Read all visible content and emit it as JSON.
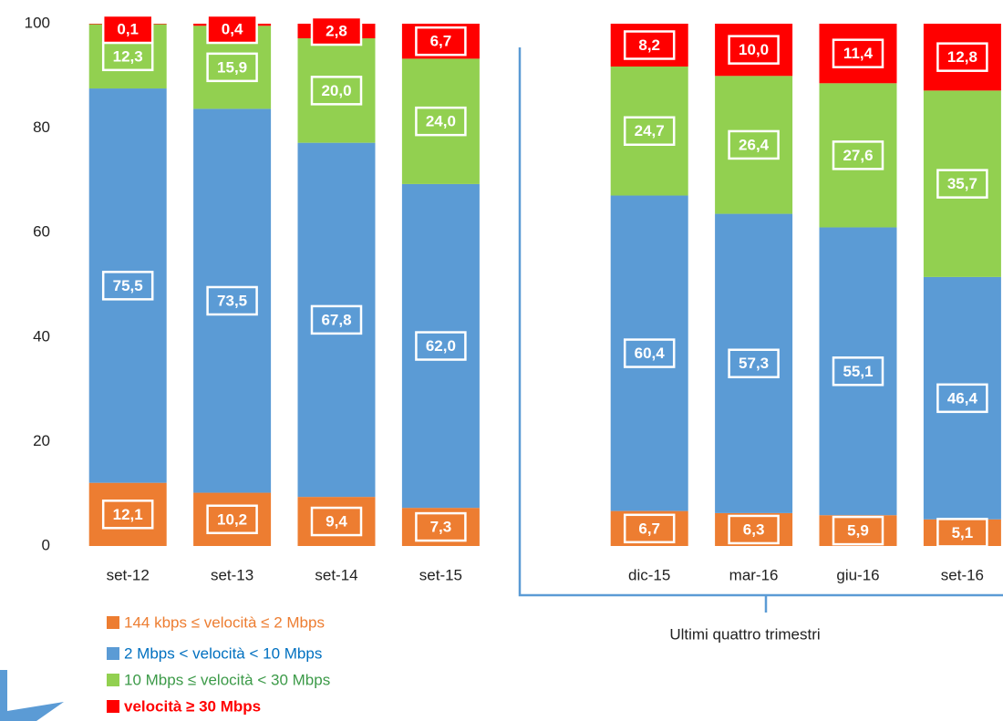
{
  "chart_data": {
    "type": "bar",
    "stacked": true,
    "categories": [
      "set-12",
      "set-13",
      "set-14",
      "set-15",
      null,
      "dic-15",
      "mar-16",
      "giu-16",
      "set-16"
    ],
    "series": [
      {
        "name": "144 kbps  ≤ velocità ≤  2 Mbps",
        "color": "#ed7d31",
        "label_color": "#ed7d31",
        "values": [
          12.1,
          10.2,
          9.4,
          7.3,
          null,
          6.7,
          6.3,
          5.9,
          5.1
        ],
        "value_labels": [
          "12,1",
          "10,2",
          "9,4",
          "7,3",
          null,
          "6,7",
          "6,3",
          "5,9",
          "5,1"
        ]
      },
      {
        "name": "2 Mbps  <  velocità  < 10 Mbps",
        "color": "#5b9bd5",
        "label_color": "#0070c0",
        "values": [
          75.5,
          73.5,
          67.8,
          62.0,
          null,
          60.4,
          57.3,
          55.1,
          46.4
        ],
        "value_labels": [
          "75,5",
          "73,5",
          "67,8",
          "62,0",
          null,
          "60,4",
          "57,3",
          "55,1",
          "46,4"
        ]
      },
      {
        "name": "10 Mbps  ≤  velocità  < 30 Mbps",
        "color": "#92d050",
        "label_color": "#3c9a48",
        "values": [
          12.3,
          15.9,
          20.0,
          24.0,
          null,
          24.7,
          26.4,
          27.6,
          35.7
        ],
        "value_labels": [
          "12,3",
          "15,9",
          "20,0",
          "24,0",
          null,
          "24,7",
          "26,4",
          "27,6",
          "35,7"
        ]
      },
      {
        "name": "velocità ≥ 30 Mbps",
        "color": "#ff0000",
        "label_color": "#ff0000",
        "label_bold": true,
        "values": [
          0.1,
          0.4,
          2.8,
          6.7,
          null,
          8.2,
          10.0,
          11.4,
          12.8
        ],
        "value_labels": [
          "0,1",
          "0,4",
          "2,8",
          "6,7",
          null,
          "8,2",
          "10,0",
          "11,4",
          "12,8"
        ]
      }
    ],
    "ylim": [
      0,
      100
    ],
    "yticks": [
      0,
      20,
      40,
      60,
      80,
      100
    ],
    "grid": false,
    "annotation": "Ultimi quattro trimestri"
  }
}
